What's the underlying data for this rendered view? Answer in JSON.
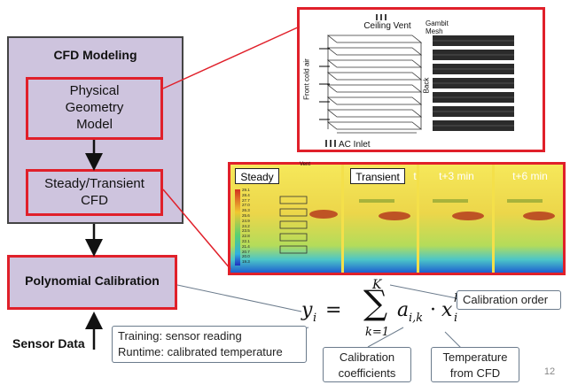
{
  "left_panel": {
    "title": "CFD Modeling",
    "box1": [
      "Physical",
      "Geometry",
      "Model"
    ],
    "box2": [
      "Steady/Transient",
      "CFD"
    ]
  },
  "calibration_box": "Polynomial Calibration",
  "sensor_data": "Sensor Data",
  "mesh_image": {
    "ceiling_vent": "Ceiling Vent",
    "ac_inlet": "AC Inlet",
    "gambit": [
      "Gambit",
      "Mesh"
    ],
    "front_cold_air": "Front cold air",
    "back": "Back"
  },
  "cfd_strip": {
    "steady": "Steady",
    "transient": "Transient",
    "t": "t",
    "t3": "t+3 min",
    "t6": "t+6 min",
    "vent": "Vent",
    "colorbar": [
      "29.1",
      "28.4",
      "27.7",
      "27.0",
      "26.3",
      "25.6",
      "24.9",
      "24.2",
      "23.5",
      "22.8",
      "22.1",
      "21.4",
      "20.7",
      "20.0",
      "19.3"
    ]
  },
  "formula": {
    "y": "y",
    "i": "i",
    "eq": "=",
    "sum_top": "K",
    "sum_bottom": "k=1",
    "a": "a",
    "a_sub": "i,k",
    "dot": "·",
    "x": "x",
    "x_sup": "k",
    "x_sub": "i"
  },
  "callouts": {
    "calibration_order": "Calibration order",
    "training": [
      "Training: sensor reading",
      "Runtime: calibrated temperature"
    ],
    "coefficients": [
      "Calibration",
      "coefficients"
    ],
    "temperature": [
      "Temperature",
      "from CFD"
    ]
  },
  "page_number": "12",
  "colors": {
    "panel_fill": "#cec4de",
    "red": "#e0202a",
    "callout_border": "#6b7b8c"
  }
}
